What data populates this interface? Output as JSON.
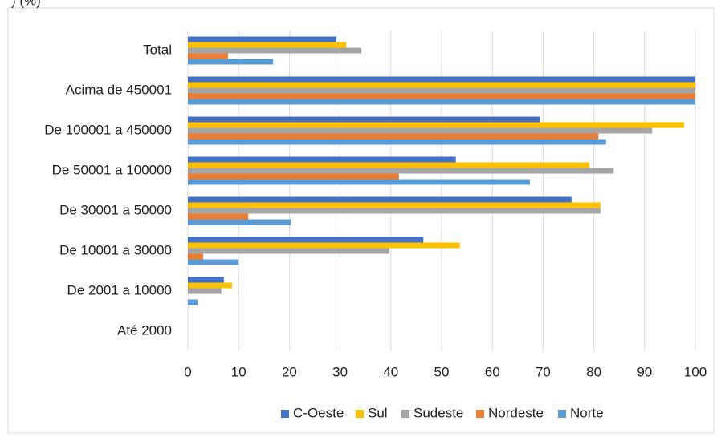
{
  "chart_data": {
    "type": "hbar",
    "title": ") (%)",
    "categories": [
      "Total",
      "Acima de 450001",
      "De 100001 a 450000",
      "De 50001 a 100000",
      "De 30001 a 50000",
      "De 10001 a 30000",
      "De 2001 a 10000",
      "Até 2000"
    ],
    "series": [
      {
        "name": "C-Oeste",
        "color": "#4472c4",
        "values": [
          29.3,
          100,
          69.3,
          52.8,
          75.6,
          46.4,
          7.1,
          0
        ]
      },
      {
        "name": "Sul",
        "color": "#ffc000",
        "values": [
          31.2,
          100,
          97.8,
          79.1,
          81.3,
          53.6,
          8.7,
          0
        ]
      },
      {
        "name": "Sudeste",
        "color": "#a5a5a5",
        "values": [
          34.2,
          100,
          91.5,
          83.9,
          81.3,
          39.7,
          6.6,
          0
        ]
      },
      {
        "name": "Nordeste",
        "color": "#ed7d31",
        "values": [
          7.9,
          100,
          80.9,
          41.6,
          11.9,
          3.0,
          0,
          0
        ]
      },
      {
        "name": "Norte",
        "color": "#5b9bd5",
        "values": [
          16.8,
          100,
          82.4,
          67.4,
          20.3,
          10.0,
          1.9,
          0
        ]
      }
    ],
    "xlim": [
      0,
      100
    ],
    "xticks": [
      0,
      10,
      20,
      30,
      40,
      50,
      60,
      70,
      80,
      90,
      100
    ],
    "grid": true,
    "legend": "bottom"
  }
}
